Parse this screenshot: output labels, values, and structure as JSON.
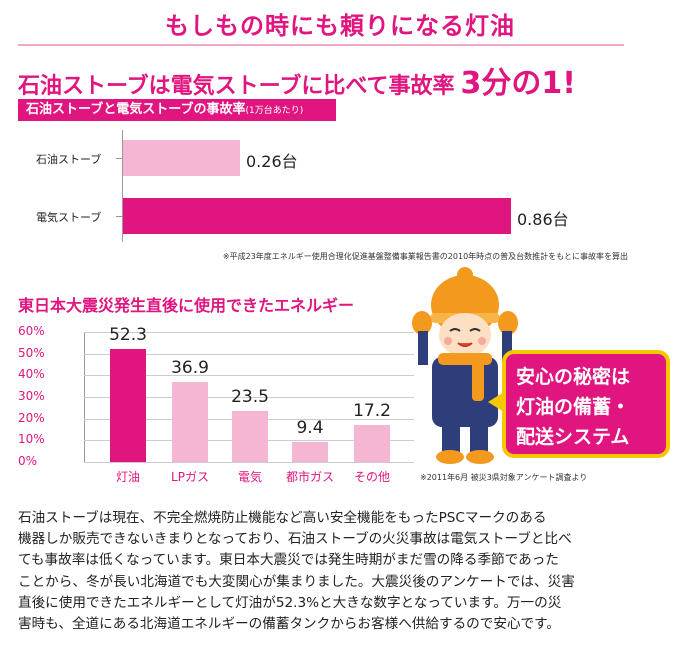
{
  "title": "もしもの時にも頼りになる灯油",
  "headline": {
    "text": "石油ストーブは電気ストーブに比べて事故率",
    "emphasis": "3分の1!"
  },
  "accident_chart": {
    "band_title": "石油ストーブと電気ストーブの事故率",
    "band_unit": "(1万台あたり)",
    "note": "※平成23年度エネルギー使用合理化促進基盤整備事業報告書の2010年時点の普及台数推計をもとに事故率を算出"
  },
  "energy_chart": {
    "title": "東日本大震災発生直後に使用できたエネルギー",
    "note": "※2011年6月 被災3県対象アンケート調査より"
  },
  "bubble": {
    "lines": [
      "安心の秘密は",
      "灯油の備蓄・",
      "配送システム"
    ]
  },
  "body": {
    "lines": [
      "石油ストーブは現在、不完全燃焼防止機能など高い安全機能をもったPSCマークのある",
      "機器しか販売できないきまりとなっており、石油ストーブの火災事故は電気ストーブと比べ",
      "ても事故率は低くなっています。東日本大震災では発生時期がまだ雪の降る季節であった",
      "ことから、冬が長い北海道でも大変関心が集まりました。大震災後のアンケートでは、災害",
      "直後に使用できたエネルギーとして灯油が52.3%と大きな数字となっています。万一の災",
      "害時も、全道にある北海道エネルギーの備蓄タンクからお客様へ供給するので安心です。"
    ]
  },
  "colors": {
    "accent": "#e0157f",
    "accent_light": "#f4b6d2",
    "bubble_border": "#f7c800"
  },
  "chart_data": [
    {
      "type": "bar",
      "orientation": "horizontal",
      "title": "石油ストーブと電気ストーブの事故率",
      "categories": [
        "石油ストーブ",
        "電気ストーブ"
      ],
      "values": [
        0.26,
        0.86
      ],
      "value_labels": [
        "0.26台",
        "0.86台"
      ],
      "xlim": [
        0,
        0.92
      ],
      "grid": false,
      "colors": [
        "#f4b6d2",
        "#e0157f"
      ]
    },
    {
      "type": "bar",
      "title": "東日本大震災発生直後に使用できたエネルギー",
      "categories": [
        "灯油",
        "LPガス",
        "電気",
        "都市ガス",
        "その他"
      ],
      "values": [
        52.3,
        36.9,
        23.5,
        9.4,
        17.2
      ],
      "value_labels": [
        "52.3",
        "36.9",
        "23.5",
        "9.4",
        "17.2"
      ],
      "y_ticks": [
        "60%",
        "50%",
        "40%",
        "30%",
        "20%",
        "10%",
        "0%"
      ],
      "ylim": [
        0,
        60
      ],
      "grid": true,
      "colors": [
        "#e0157f",
        "#f4b6d2",
        "#f4b6d2",
        "#f4b6d2",
        "#f4b6d2"
      ]
    }
  ]
}
